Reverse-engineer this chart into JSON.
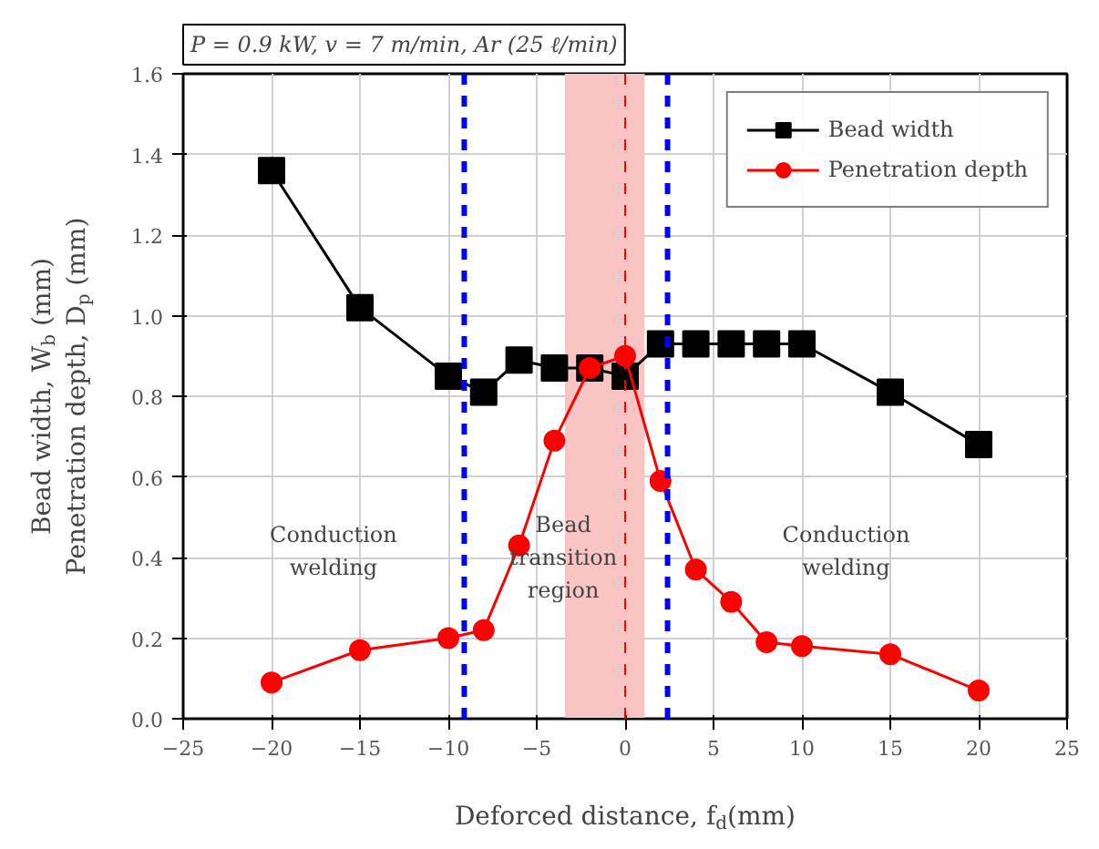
{
  "chart_data": {
    "type": "line",
    "title": "P = 0.9 kW, v = 7 m/min, Ar (25 ℓ/min)",
    "xlabel": "Deforced distance, f$_{d}$(mm)",
    "ylabel": "Bead width, W$_{b}$ (mm)\nPenetration depth, D$_{p}$ (mm)",
    "x": [
      -20,
      -15,
      -10,
      -8,
      -6,
      -4,
      -2,
      0,
      2,
      4,
      6,
      8,
      10,
      15,
      20
    ],
    "series": [
      {
        "name": "Bead width",
        "color": "#000000",
        "marker": "square",
        "values": [
          1.36,
          1.02,
          0.85,
          0.81,
          0.89,
          0.87,
          0.87,
          0.85,
          0.93,
          0.93,
          0.93,
          0.93,
          0.93,
          0.81,
          0.68
        ]
      },
      {
        "name": "Penetration depth",
        "color": "#ff0000",
        "marker": "circle",
        "values": [
          0.09,
          0.17,
          0.2,
          0.22,
          0.43,
          0.69,
          0.87,
          0.9,
          0.59,
          0.37,
          0.29,
          0.19,
          0.18,
          0.16,
          0.07
        ]
      }
    ],
    "xlim": [
      -25,
      25
    ],
    "xticks": [
      -25,
      -20,
      -15,
      -10,
      -5,
      0,
      5,
      10,
      15,
      20,
      25
    ],
    "ylim": [
      0,
      1.6
    ],
    "yticks": [
      {
        "value": 0,
        "label": "0.0"
      },
      {
        "value": 0.2,
        "label": "0.2"
      },
      {
        "value": 0.4,
        "label": "0.4"
      },
      {
        "value": 0.6,
        "label": "0.6"
      },
      {
        "value": 0.8,
        "label": "0.8"
      },
      {
        "value": 1.0,
        "label": "1.0"
      },
      {
        "value": 1.2,
        "label": "1.2"
      },
      {
        "value": 1.4,
        "label": "1.4"
      },
      {
        "value": 1.6,
        "label": "1.6"
      }
    ],
    "bands": [
      {
        "axis": "x",
        "from": -3.4,
        "to": 1.1,
        "color": "#f9c4c4"
      }
    ],
    "ref_lines": [
      {
        "axis": "x",
        "value": -9.1,
        "color": "#0000ff",
        "line_style": "dashed"
      },
      {
        "axis": "x",
        "value": 2.4,
        "color": "#0000ff",
        "line_style": "dashed"
      },
      {
        "axis": "x",
        "value": 0,
        "color": "#ff0000",
        "line_style": "dashed"
      }
    ],
    "annotations": [
      "Conduction\nwelding",
      {
        "text": "Bead\ntransition\nregion",
        "x": -3.5,
        "y": 0.4
      },
      "Conduction\nwelding"
    ],
    "grid": true,
    "legend": "top right",
    "line_style": "solid"
  }
}
